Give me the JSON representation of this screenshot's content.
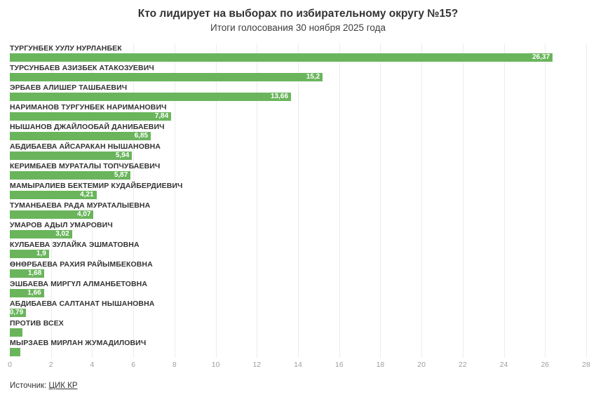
{
  "header": {
    "title": "Кто лидирует на выборах по избирательному округу №15?",
    "subtitle": "Итоги голосования 30 ноября 2025 года"
  },
  "chart_data": {
    "type": "bar",
    "orientation": "horizontal",
    "title": "Кто лидирует на выборах по избирательному округу №15?",
    "subtitle": "Итоги голосования 30 ноября 2025 года",
    "categories": [
      "ТУРГУНБЕК УУЛУ НУРЛАНБЕК",
      "ТУРСУНБАЕВ АЗИЗБЕК АТАКОЗУЕВИЧ",
      "ЭРБАЕВ АЛИШЕР ТАШБАЕВИЧ",
      "НАРИМАНОВ ТУРГУНБЕК НАРИМАНОВИЧ",
      "НЫШАНОВ ДЖАЙЛООБАЙ ДАНИБАЕВИЧ",
      "АБДИБАЕВА АЙСАРАКАН НЫШАНОВНА",
      "КЕРИМБАЕВ МУРАТАЛЫ ТОПЧУБАЕВИЧ",
      "МАМЫРАЛИЕВ БЕКТЕМИР КУДАЙБЕРДИЕВИЧ",
      "ТУМАНБАЕВА РАДА МУРАТАЛЫЕВНА",
      "УМАРОВ АДЫЛ УМАРОВИЧ",
      "КУЛБАЕВА ЗУЛАЙКА ЭШМАТОВНА",
      "ӨНӨРБАЕВА РАХИЯ РАЙЫМБЕКОВНА",
      "ЭШБАЕВА МИРГҮЛ АЛМАНБЕТОВНА",
      "АБДИБАЕВА САЛТАНАТ НЫШАНОВНА",
      "ПРОТИВ ВСЕХ",
      "МЫРЗАЕВ МИРЛАН ЖУМАДИЛОВИЧ"
    ],
    "values": [
      26.37,
      15.2,
      13.66,
      7.84,
      6.85,
      5.94,
      5.87,
      4.21,
      4.07,
      3.02,
      1.9,
      1.68,
      1.66,
      0.79,
      0.6,
      0.5
    ],
    "value_labels": [
      "26,37",
      "15,2",
      "13,66",
      "7,84",
      "6,85",
      "5,94",
      "5,87",
      "4,21",
      "4,07",
      "3,02",
      "1,9",
      "1,68",
      "1,66",
      "0,79",
      "",
      ""
    ],
    "xlabel": "",
    "ylabel": "",
    "xlim": [
      0,
      28
    ],
    "x_ticks": [
      0,
      2,
      4,
      6,
      8,
      10,
      12,
      14,
      16,
      18,
      20,
      22,
      24,
      26,
      28
    ],
    "grid": true,
    "legend": "none",
    "bar_color": "#6ab55c",
    "value_label_color": "#ffffff"
  },
  "footer": {
    "source_label": "Источник:",
    "source_link": "ЦИК КР"
  }
}
